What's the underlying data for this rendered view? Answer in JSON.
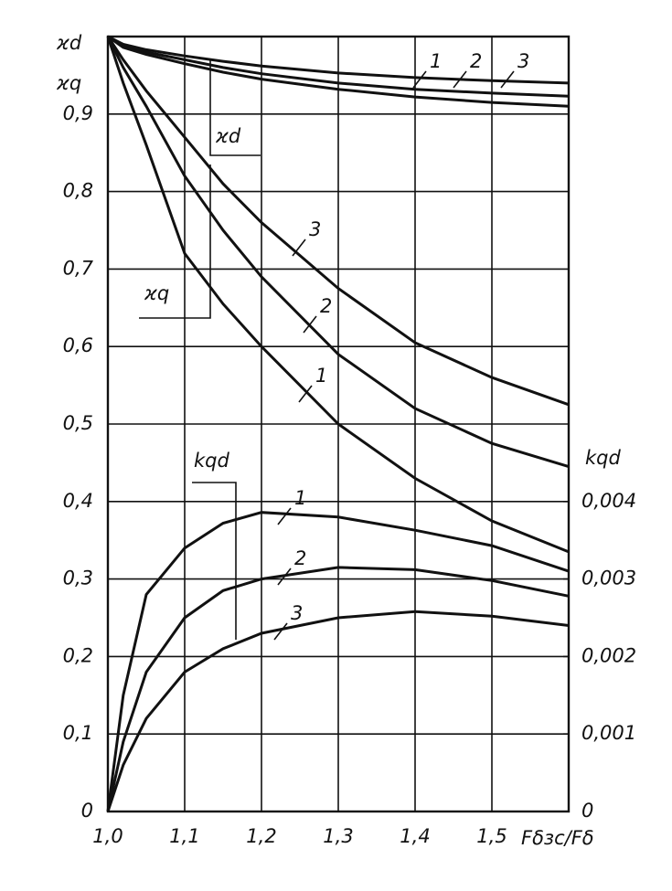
{
  "chart_data": {
    "type": "line",
    "y_label": [
      "ϰd",
      "ϰq"
    ],
    "y2_label": "kqd",
    "x_label": "Fδзс/Fδ",
    "annotations": [
      "ϰd",
      "ϰq",
      "kqd"
    ],
    "x": [
      1.0,
      1.02,
      1.05,
      1.1,
      1.15,
      1.2,
      1.3,
      1.4,
      1.5,
      1.6
    ],
    "xlim": [
      1.0,
      1.6
    ],
    "xticks": [
      {
        "value": 1.0,
        "label": "1,0"
      },
      {
        "value": 1.1,
        "label": "1,1"
      },
      {
        "value": 1.2,
        "label": "1,2"
      },
      {
        "value": 1.3,
        "label": "1,3"
      },
      {
        "value": 1.4,
        "label": "1,4"
      },
      {
        "value": 1.5,
        "label": "1,5"
      }
    ],
    "ylim": [
      0,
      1.0
    ],
    "yticks": [
      0,
      {
        "value": 0.1,
        "label": "0,1"
      },
      {
        "value": 0.2,
        "label": "0,2"
      },
      {
        "value": 0.3,
        "label": "0,3"
      },
      {
        "value": 0.4,
        "label": "0,4"
      },
      {
        "value": 0.5,
        "label": "0,5"
      },
      {
        "value": 0.6,
        "label": "0,6"
      },
      {
        "value": 0.7,
        "label": "0,7"
      },
      {
        "value": 0.8,
        "label": "0,8"
      },
      {
        "value": 0.9,
        "label": "0,9"
      }
    ],
    "y2lim": [
      0,
      0.01
    ],
    "y2ticks": [
      0,
      {
        "value": 0.001,
        "label": "0,001"
      },
      {
        "value": 0.002,
        "label": "0,002"
      },
      {
        "value": 0.003,
        "label": "0,003"
      },
      {
        "value": 0.004,
        "label": "0,004"
      }
    ],
    "grid": true,
    "color": "#111111",
    "series": [
      {
        "name": "1",
        "values": [
          1.0,
          0.99,
          0.983,
          0.975,
          0.968,
          0.962,
          0.953,
          0.947,
          0.943,
          0.94
        ]
      },
      {
        "name": "2",
        "values": [
          1.0,
          0.988,
          0.98,
          0.97,
          0.96,
          0.952,
          0.94,
          0.932,
          0.927,
          0.923
        ]
      },
      {
        "name": "3",
        "values": [
          1.0,
          0.986,
          0.977,
          0.965,
          0.954,
          0.945,
          0.932,
          0.922,
          0.915,
          0.91
        ]
      },
      {
        "name": "3",
        "values": [
          1.0,
          0.97,
          0.93,
          0.87,
          0.81,
          0.76,
          0.675,
          0.605,
          0.56,
          0.525
        ]
      },
      {
        "name": "2",
        "values": [
          1.0,
          0.96,
          0.91,
          0.82,
          0.75,
          0.69,
          0.59,
          0.52,
          0.475,
          0.445
        ]
      },
      {
        "name": "1",
        "values": [
          1.0,
          0.94,
          0.86,
          0.72,
          0.655,
          0.6,
          0.5,
          0.43,
          0.375,
          0.335
        ]
      },
      {
        "name": "1",
        "axis": "y2",
        "values": [
          0,
          0.0015,
          0.0028,
          0.0034,
          0.00372,
          0.00386,
          0.0038,
          0.00363,
          0.00343,
          0.0031
        ]
      },
      {
        "name": "2",
        "axis": "y2",
        "values": [
          0,
          0.0009,
          0.0018,
          0.0025,
          0.00285,
          0.003,
          0.00315,
          0.00312,
          0.00298,
          0.00278
        ]
      },
      {
        "name": "3",
        "axis": "y2",
        "values": [
          0,
          0.0006,
          0.0012,
          0.0018,
          0.0021,
          0.0023,
          0.0025,
          0.00258,
          0.00252,
          0.0024
        ]
      }
    ]
  }
}
